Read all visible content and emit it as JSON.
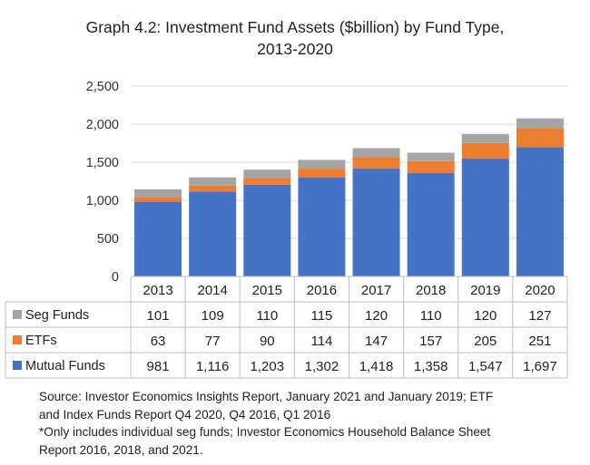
{
  "title_line1": "Graph 4.2: Investment Fund Assets ($billion) by Fund Type,",
  "title_line2": "2013-2020",
  "chart_data": {
    "type": "bar",
    "stacked": true,
    "categories": [
      "2013",
      "2014",
      "2015",
      "2016",
      "2017",
      "2018",
      "2019",
      "2020"
    ],
    "series": [
      {
        "name": "Mutual Funds",
        "color": "#4472c4",
        "values": [
          981,
          1116,
          1203,
          1302,
          1418,
          1358,
          1547,
          1697
        ],
        "labels": [
          "981",
          "1,116",
          "1,203",
          "1,302",
          "1,418",
          "1,358",
          "1,547",
          "1,697"
        ]
      },
      {
        "name": "ETFs",
        "color": "#ed7d31",
        "values": [
          63,
          77,
          90,
          114,
          147,
          157,
          205,
          251
        ],
        "labels": [
          "63",
          "77",
          "90",
          "114",
          "147",
          "157",
          "205",
          "251"
        ]
      },
      {
        "name": "Seg Funds",
        "color": "#a5a5a5",
        "values": [
          101,
          109,
          110,
          115,
          120,
          110,
          120,
          127
        ],
        "labels": [
          "101",
          "109",
          "110",
          "115",
          "120",
          "110",
          "120",
          "127"
        ]
      }
    ],
    "table_row_order": [
      "Seg Funds",
      "ETFs",
      "Mutual Funds"
    ],
    "yticks": [
      "0",
      "500",
      "1,000",
      "1,500",
      "2,000",
      "2,500"
    ],
    "ylim": [
      0,
      2500
    ],
    "grid": true,
    "legend": "data table"
  },
  "source_lines": [
    "Source: Investor Economics Insights Report, January 2021 and January 2019; ETF",
    "and Index Funds Report Q4 2020, Q4 2016, Q1 2016",
    "*Only includes individual seg funds; Investor Economics Household Balance Sheet",
    "Report 2016, 2018, and 2021."
  ]
}
